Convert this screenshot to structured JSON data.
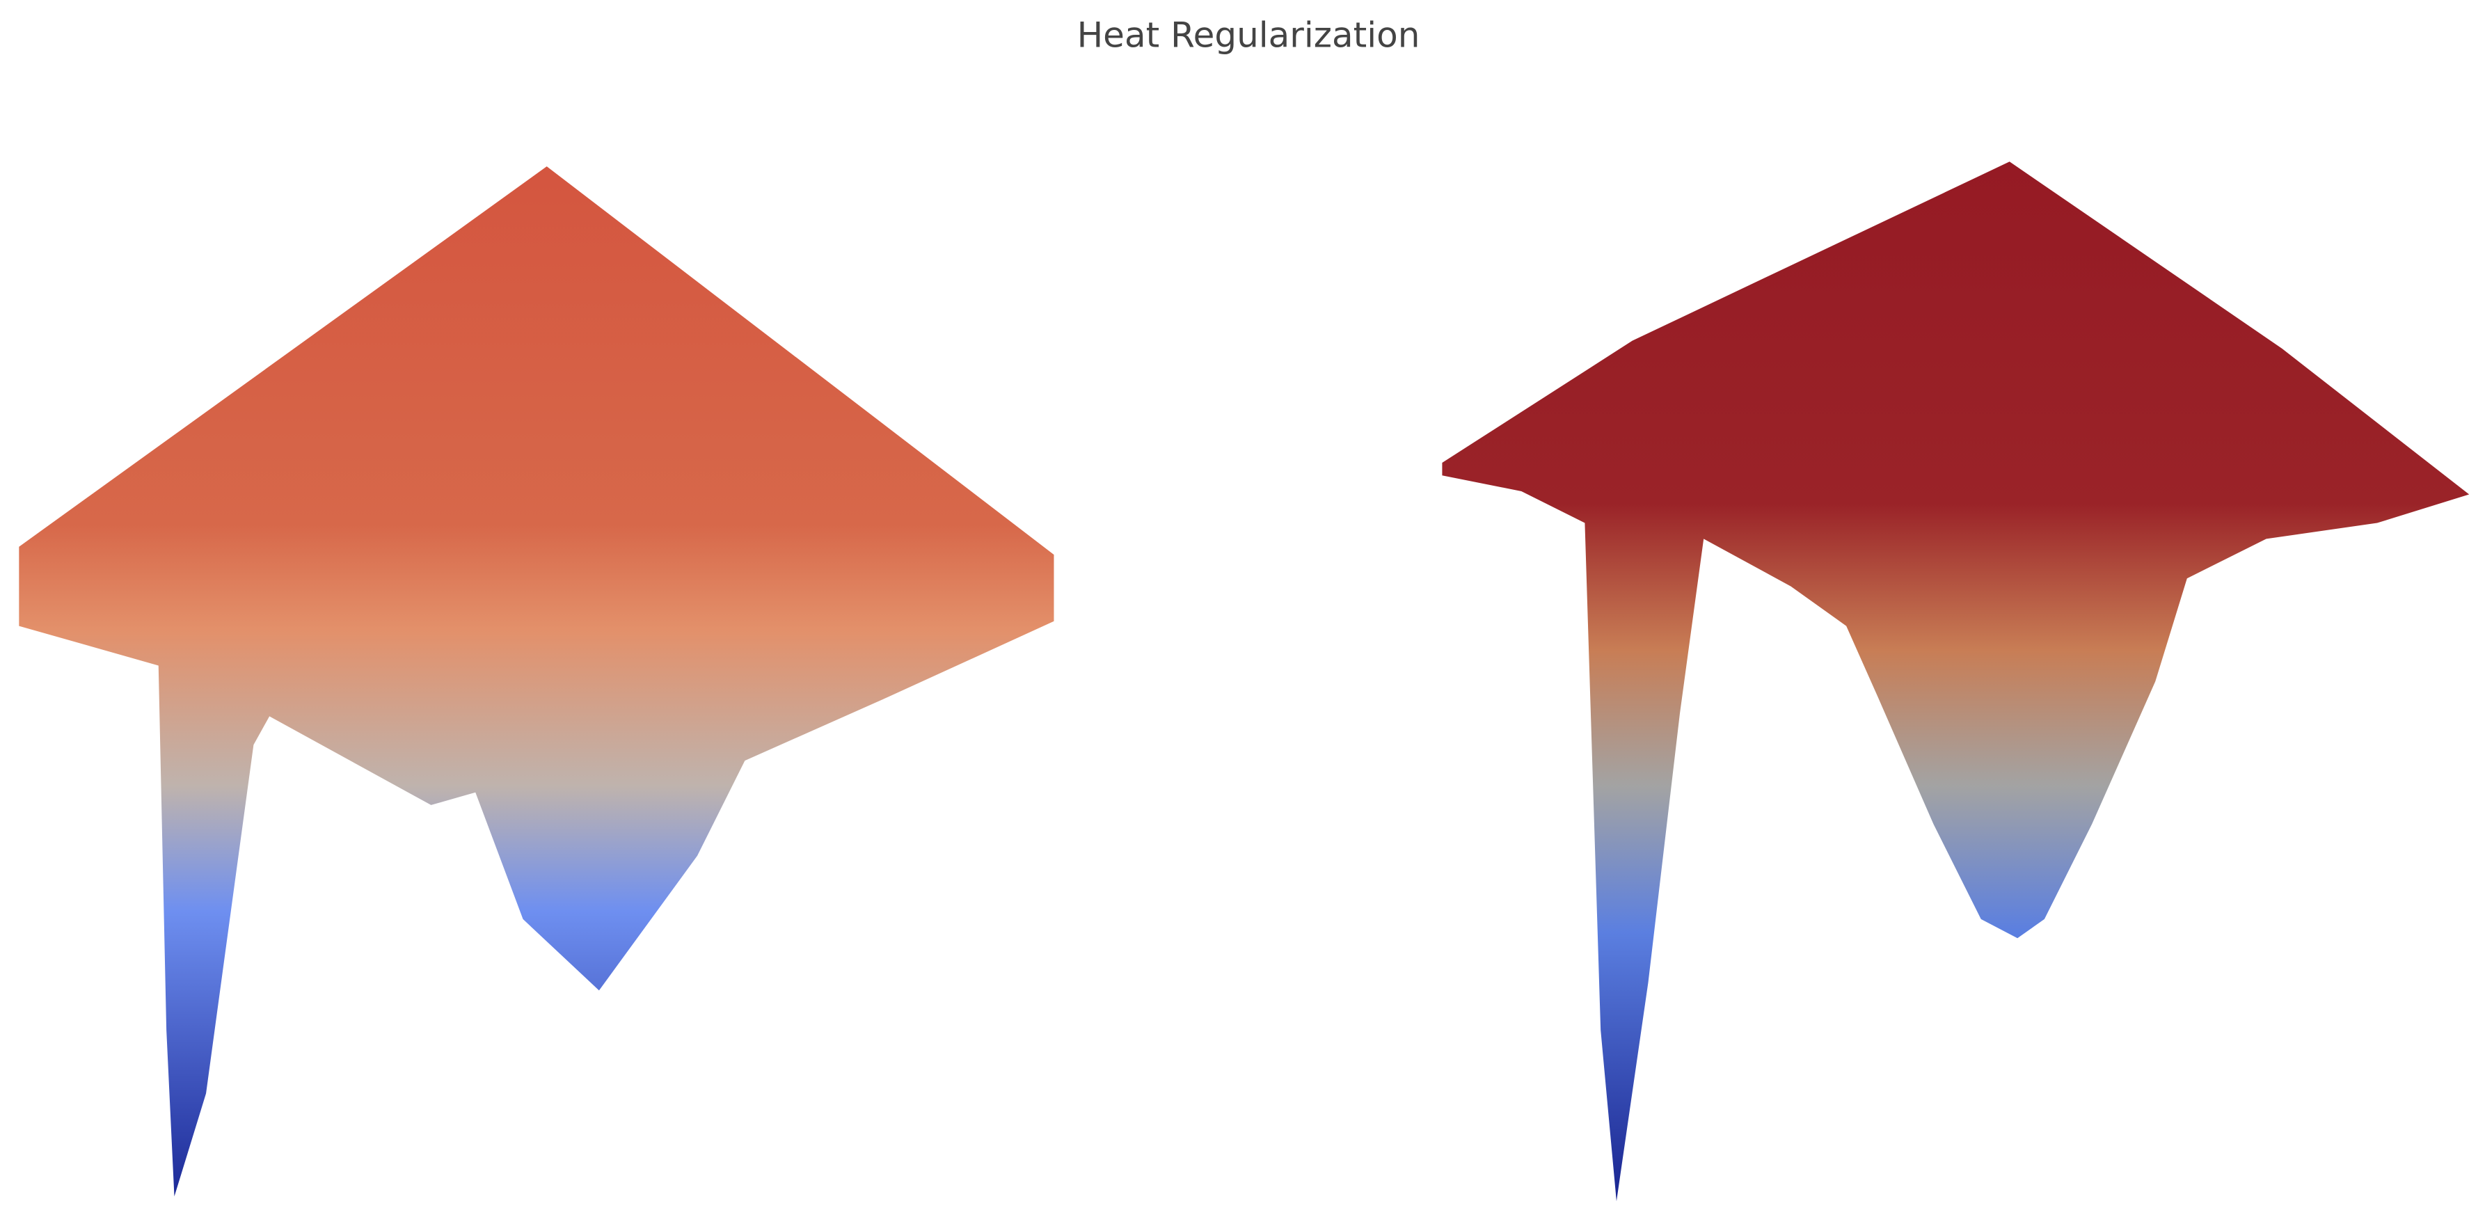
{
  "chart_data": {
    "type": "surface",
    "title": "Heat Regularization"
  }
}
